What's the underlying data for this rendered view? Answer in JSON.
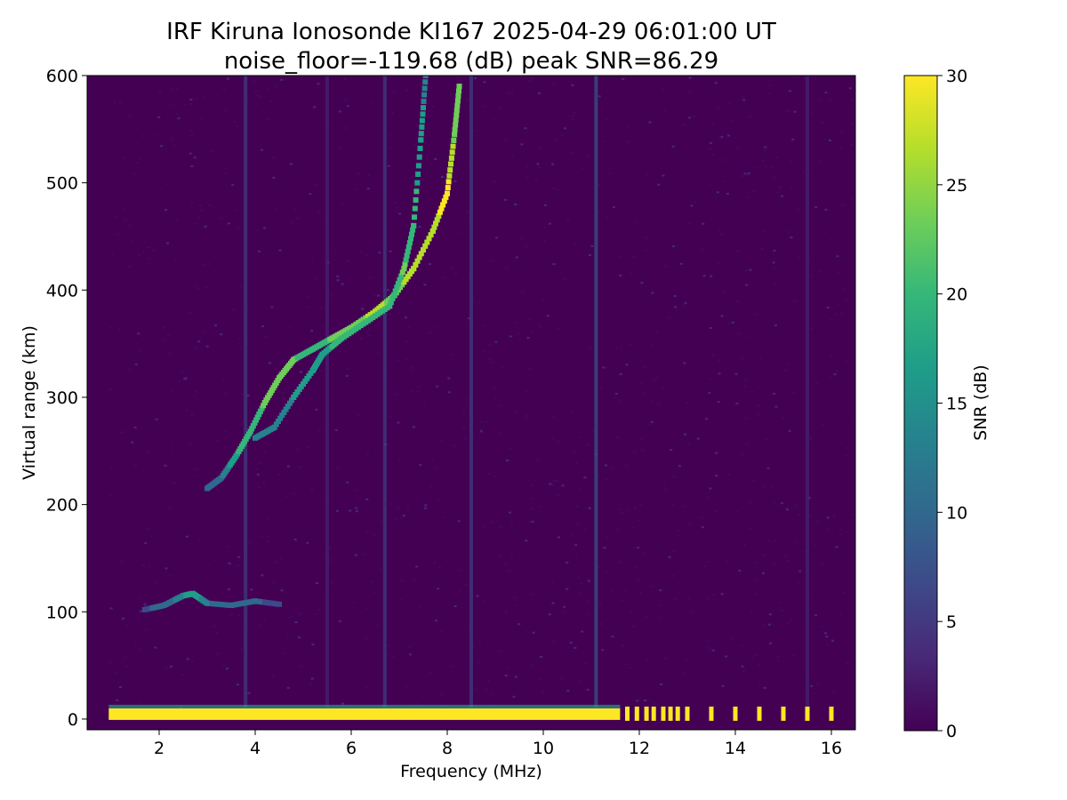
{
  "colors": {
    "background": "#440154",
    "background_alt": "#46085c",
    "colormap": [
      "#440154",
      "#482878",
      "#3e4989",
      "#31688e",
      "#26828e",
      "#1f9e89",
      "#35b779",
      "#6ece58",
      "#b5de2b",
      "#fde725"
    ]
  },
  "chart_data": {
    "type": "heatmap",
    "title": "IRF Kiruna Ionosonde KI167 2025-04-29 06:01:00  UT",
    "subtitle": "noise_floor=-119.68 (dB) peak SNR=86.29",
    "xlabel": "Frequency (MHz)",
    "ylabel": "Virtual range (km)",
    "xlim": [
      0.5,
      16.5
    ],
    "ylim": [
      -10,
      600
    ],
    "x_ticks": [
      2,
      4,
      6,
      8,
      10,
      12,
      14,
      16
    ],
    "y_ticks": [
      0,
      100,
      200,
      300,
      400,
      500,
      600
    ],
    "grid": false,
    "colorbar": {
      "label": "SNR (dB)",
      "range": [
        0,
        30
      ],
      "ticks": [
        0,
        5,
        10,
        15,
        20,
        25,
        30
      ],
      "colormap": "viridis"
    },
    "data_frequency_range_mhz": [
      0.95,
      16.5
    ],
    "ground_echo": {
      "range_km": 5,
      "continuous_until_mhz": 11.6,
      "snr_db": 30,
      "discrete_frequencies_mhz": [
        11.75,
        11.95,
        12.15,
        12.3,
        12.5,
        12.65,
        12.8,
        13.0,
        13.5,
        14.0,
        14.5,
        15.0,
        15.5,
        16.0
      ]
    },
    "traces": [
      {
        "layer": "E",
        "points": [
          [
            1.7,
            102,
            8
          ],
          [
            2.1,
            106,
            9
          ],
          [
            2.5,
            115,
            14
          ],
          [
            2.7,
            117,
            18
          ],
          [
            3.0,
            108,
            12
          ],
          [
            3.5,
            106,
            10
          ],
          [
            4.0,
            110,
            9
          ],
          [
            4.5,
            107,
            7
          ]
        ]
      },
      {
        "layer": "F (ordinary)",
        "points": [
          [
            3.0,
            215,
            9
          ],
          [
            3.3,
            225,
            11
          ],
          [
            3.6,
            245,
            18
          ],
          [
            3.9,
            268,
            20
          ],
          [
            4.2,
            295,
            22
          ],
          [
            4.5,
            318,
            24
          ],
          [
            4.8,
            335,
            22
          ],
          [
            5.2,
            345,
            20
          ],
          [
            5.6,
            355,
            22
          ],
          [
            6.0,
            365,
            23
          ],
          [
            6.5,
            380,
            26
          ],
          [
            6.9,
            395,
            24
          ],
          [
            7.3,
            420,
            26
          ],
          [
            7.7,
            455,
            27
          ],
          [
            8.0,
            490,
            30
          ],
          [
            8.15,
            545,
            24
          ],
          [
            8.25,
            590,
            22
          ]
        ]
      },
      {
        "layer": "F (extraordinary)",
        "points": [
          [
            4.0,
            262,
            12
          ],
          [
            4.4,
            272,
            13
          ],
          [
            4.8,
            300,
            15
          ],
          [
            5.2,
            325,
            16
          ],
          [
            5.4,
            340,
            17
          ],
          [
            5.8,
            355,
            20
          ],
          [
            6.3,
            370,
            20
          ],
          [
            6.8,
            385,
            20
          ],
          [
            7.1,
            420,
            22
          ],
          [
            7.3,
            460,
            20
          ],
          [
            7.45,
            540,
            16
          ],
          [
            7.55,
            600,
            14
          ]
        ]
      }
    ],
    "interference_lines_mhz": [
      {
        "freq": 8.5,
        "snr_db": 8
      },
      {
        "freq": 11.1,
        "snr_db": 9
      },
      {
        "freq": 3.8,
        "snr_db": 5
      },
      {
        "freq": 5.5,
        "snr_db": 4
      },
      {
        "freq": 6.7,
        "snr_db": 5
      },
      {
        "freq": 15.5,
        "snr_db": 4
      }
    ]
  }
}
